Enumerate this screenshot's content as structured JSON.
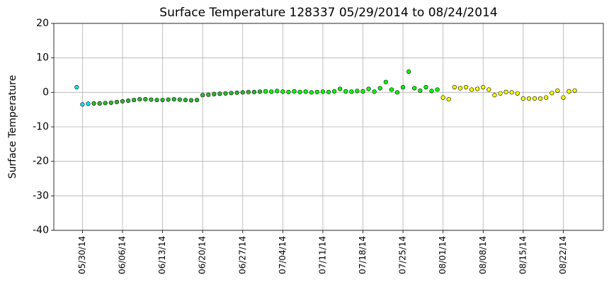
{
  "chart_data": {
    "type": "scatter",
    "title": "Surface Temperature 128337  05/29/2014 to 08/24/2014",
    "y_label": "Surface Temperature",
    "xlim": [
      "05/25/14",
      "08/29/14"
    ],
    "xticks": [
      "05/30/14",
      "06/06/14",
      "06/13/14",
      "06/20/14",
      "06/27/14",
      "07/04/14",
      "07/11/14",
      "07/18/14",
      "07/25/14",
      "08/01/14",
      "08/08/14",
      "08/15/14",
      "08/22/14"
    ],
    "ylim": [
      -40,
      20
    ],
    "yticks": [
      -40,
      -30,
      -20,
      -10,
      0,
      10,
      20
    ],
    "grid": true,
    "series": [
      {
        "color": "#00e5ff",
        "x": [
          "05/29/14",
          "05/30/14",
          "05/31/14"
        ],
        "values": [
          1.5,
          -3.5,
          -3.3
        ]
      },
      {
        "color": "#2eb82e",
        "x": [
          "06/01/14",
          "06/02/14",
          "06/03/14",
          "06/04/14",
          "06/05/14",
          "06/06/14",
          "06/07/14",
          "06/08/14",
          "06/09/14",
          "06/10/14",
          "06/11/14",
          "06/12/14",
          "06/13/14",
          "06/14/14",
          "06/15/14",
          "06/16/14",
          "06/17/14",
          "06/18/14",
          "06/19/14",
          "06/20/14",
          "06/21/14",
          "06/22/14",
          "06/23/14",
          "06/24/14",
          "06/25/14",
          "06/26/14",
          "06/27/14",
          "06/28/14",
          "06/29/14",
          "06/30/14"
        ],
        "values": [
          -3.2,
          -3.2,
          -3.1,
          -3.0,
          -2.8,
          -2.6,
          -2.4,
          -2.2,
          -2.0,
          -2.0,
          -2.1,
          -2.2,
          -2.2,
          -2.1,
          -2.0,
          -2.1,
          -2.2,
          -2.3,
          -2.2,
          -0.8,
          -0.7,
          -0.5,
          -0.4,
          -0.3,
          -0.2,
          -0.1,
          0,
          0.1,
          0.1,
          0.2
        ]
      },
      {
        "color": "#00ff00",
        "x": [
          "07/01/14",
          "07/02/14",
          "07/03/14",
          "07/04/14",
          "07/05/14",
          "07/06/14",
          "07/07/14",
          "07/08/14",
          "07/09/14",
          "07/10/14",
          "07/11/14",
          "07/12/14",
          "07/13/14",
          "07/14/14",
          "07/15/14",
          "07/16/14",
          "07/17/14",
          "07/18/14",
          "07/19/14",
          "07/20/14",
          "07/21/14",
          "07/22/14",
          "07/23/14",
          "07/24/14",
          "07/25/14",
          "07/26/14",
          "07/27/14",
          "07/28/14",
          "07/29/14",
          "07/30/14",
          "07/31/14"
        ],
        "values": [
          0.3,
          0.2,
          0.4,
          0.2,
          0.1,
          0.3,
          0.1,
          0.2,
          0,
          0.1,
          0.2,
          0.1,
          0.3,
          1.0,
          0.3,
          0.2,
          0.4,
          0.3,
          1.0,
          0.2,
          1.2,
          3.0,
          0.8,
          0.0,
          1.5,
          6.0,
          1.2,
          0.5,
          1.5,
          0.4,
          0.8
        ]
      },
      {
        "color": "#ffff00",
        "x": [
          "08/01/14",
          "08/02/14",
          "08/03/14",
          "08/04/14",
          "08/05/14",
          "08/06/14",
          "08/07/14",
          "08/08/14",
          "08/09/14",
          "08/10/14",
          "08/11/14",
          "08/12/14",
          "08/13/14",
          "08/14/14",
          "08/15/14",
          "08/16/14",
          "08/17/14",
          "08/18/14",
          "08/19/14",
          "08/20/14",
          "08/21/14",
          "08/22/14",
          "08/23/14",
          "08/24/14"
        ],
        "values": [
          -1.5,
          -2.0,
          1.5,
          1.2,
          1.5,
          0.8,
          1.0,
          1.5,
          0.8,
          -0.8,
          -0.3,
          0.1,
          0.0,
          -0.3,
          -1.8,
          -1.8,
          -1.8,
          -1.8,
          -1.5,
          -0.2,
          0.5,
          -1.5,
          0.3,
          0.5
        ]
      }
    ]
  }
}
